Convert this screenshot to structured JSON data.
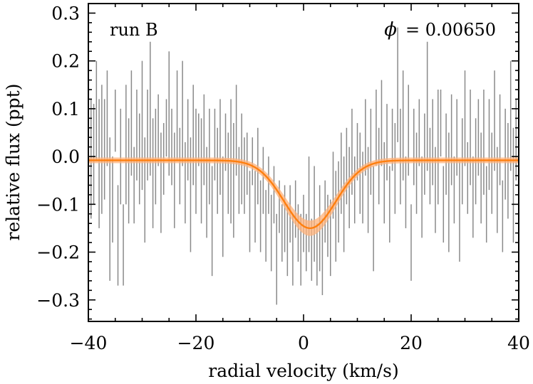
{
  "chart_data": {
    "type": "scatter",
    "xlabel": "radial velocity (km/s)",
    "ylabel": "relative flux (ppt)",
    "xlim": [
      -40,
      40
    ],
    "ylim": [
      -0.345,
      0.32
    ],
    "xticks": [
      -40,
      -20,
      0,
      20,
      40
    ],
    "xtick_labels": [
      "−40",
      "−20",
      "0",
      "20",
      "40"
    ],
    "yticks": [
      -0.3,
      -0.2,
      -0.1,
      0.0,
      0.1,
      0.2,
      0.3
    ],
    "ytick_labels": [
      "−0.3",
      "−0.2",
      "−0.1",
      "0.0",
      "0.1",
      "0.2",
      "0.3"
    ],
    "annotations": {
      "run_label": "run B",
      "phase_symbol": "ϕ",
      "phase_value": "= 0.00650"
    },
    "colors": {
      "errorbar": "#8a8a8a",
      "model_line": "#ff7f0e",
      "model_band": "#ffb27a"
    },
    "model": {
      "baseline": -0.008,
      "depth": 0.142,
      "center": 1.2,
      "sigma": 4.8,
      "band_halfwidth_wing": 0.006,
      "band_halfwidth_core": 0.016
    },
    "errorbars": [
      [
        -39.5,
        -0.13,
        0.12
      ],
      [
        -39.0,
        -0.1,
        0.11
      ],
      [
        -38.5,
        -0.01,
        0.2
      ],
      [
        -38.0,
        -0.15,
        0.12
      ],
      [
        -37.5,
        -0.12,
        0.15
      ],
      [
        -37.0,
        -0.09,
        0.12
      ],
      [
        -36.5,
        -0.02,
        0.18
      ],
      [
        -36.0,
        -0.26,
        0.04
      ],
      [
        -35.5,
        -0.18,
        0.0
      ],
      [
        -35.0,
        0.01,
        0.14
      ],
      [
        -34.5,
        -0.27,
        -0.06
      ],
      [
        -34.0,
        -0.1,
        0.1
      ],
      [
        -33.5,
        -0.27,
        -0.1
      ],
      [
        -33.0,
        -0.1,
        0.15
      ],
      [
        -32.5,
        -0.14,
        0.08
      ],
      [
        -32.0,
        -0.04,
        0.18
      ],
      [
        -31.5,
        -0.14,
        0.02
      ],
      [
        -31.0,
        -0.05,
        0.14
      ],
      [
        -30.5,
        -0.1,
        0.09
      ],
      [
        -30.0,
        -0.07,
        0.2
      ],
      [
        -29.5,
        -0.18,
        0.04
      ],
      [
        -29.0,
        -0.05,
        0.14
      ],
      [
        -28.5,
        -0.04,
        0.24
      ],
      [
        -28.0,
        -0.15,
        0.08
      ],
      [
        -27.5,
        -0.1,
        0.1
      ],
      [
        -27.0,
        -0.02,
        0.13
      ],
      [
        -26.5,
        -0.16,
        0.05
      ],
      [
        -26.0,
        -0.08,
        0.07
      ],
      [
        -25.5,
        0.0,
        0.12
      ],
      [
        -25.0,
        -0.04,
        0.22
      ],
      [
        -24.5,
        -0.06,
        0.1
      ],
      [
        -24.0,
        -0.15,
        0.05
      ],
      [
        -23.5,
        -0.01,
        0.18
      ],
      [
        -23.0,
        -0.1,
        0.06
      ],
      [
        -22.5,
        -0.02,
        0.2
      ],
      [
        -22.0,
        -0.14,
        0.03
      ],
      [
        -21.5,
        -0.05,
        0.12
      ],
      [
        -21.0,
        -0.2,
        0.04
      ],
      [
        -20.5,
        -0.06,
        0.15
      ],
      [
        -20.0,
        -0.12,
        0.1
      ],
      [
        -19.5,
        -0.02,
        0.09
      ],
      [
        -19.0,
        -0.14,
        0.08
      ],
      [
        -18.5,
        -0.06,
        0.13
      ],
      [
        -18.0,
        -0.17,
        0.02
      ],
      [
        -17.5,
        -0.1,
        0.1
      ],
      [
        -17.0,
        -0.25,
        -0.02
      ],
      [
        -16.5,
        -0.05,
        0.1
      ],
      [
        -16.0,
        -0.12,
        0.06
      ],
      [
        -15.5,
        -0.08,
        0.12
      ],
      [
        -15.0,
        -0.21,
        0.0
      ],
      [
        -14.5,
        -0.03,
        0.09
      ],
      [
        -14.0,
        -0.12,
        0.05
      ],
      [
        -13.5,
        -0.14,
        0.12
      ],
      [
        -13.0,
        -0.17,
        0.07
      ],
      [
        -12.5,
        -0.04,
        0.15
      ],
      [
        -12.0,
        -0.12,
        0.02
      ],
      [
        -11.5,
        -0.1,
        0.09
      ],
      [
        -11.0,
        -0.12,
        0.04
      ],
      [
        -10.5,
        -0.08,
        0.05
      ],
      [
        -10.0,
        -0.2,
        -0.03
      ],
      [
        -9.5,
        -0.06,
        0.04
      ],
      [
        -9.0,
        -0.18,
        -0.03
      ],
      [
        -8.5,
        -0.1,
        0.06
      ],
      [
        -8.0,
        -0.2,
        -0.05
      ],
      [
        -7.5,
        -0.12,
        0.02
      ],
      [
        -7.0,
        -0.22,
        -0.07
      ],
      [
        -6.5,
        -0.12,
        0.0
      ],
      [
        -6.0,
        -0.24,
        -0.08
      ],
      [
        -5.5,
        -0.14,
        -0.02
      ],
      [
        -5.0,
        -0.31,
        -0.12
      ],
      [
        -4.5,
        -0.16,
        -0.05
      ],
      [
        -4.0,
        -0.22,
        -0.1
      ],
      [
        -3.5,
        -0.2,
        -0.06
      ],
      [
        -3.0,
        -0.25,
        -0.1
      ],
      [
        -2.5,
        -0.18,
        -0.06
      ],
      [
        -2.0,
        -0.27,
        -0.12
      ],
      [
        -1.5,
        -0.17,
        -0.05
      ],
      [
        -1.0,
        -0.22,
        -0.1
      ],
      [
        -0.5,
        -0.27,
        -0.12
      ],
      [
        0.0,
        -0.2,
        -0.08
      ],
      [
        0.5,
        -0.24,
        -0.12
      ],
      [
        1.0,
        -0.2,
        0.0
      ],
      [
        1.5,
        -0.26,
        -0.13
      ],
      [
        2.0,
        -0.22,
        -0.02
      ],
      [
        2.5,
        -0.27,
        -0.14
      ],
      [
        3.0,
        -0.24,
        -0.06
      ],
      [
        3.5,
        -0.29,
        -0.13
      ],
      [
        4.0,
        -0.18,
        -0.05
      ],
      [
        4.5,
        -0.21,
        -0.08
      ],
      [
        5.0,
        -0.25,
        -0.09
      ],
      [
        5.5,
        -0.13,
        0.01
      ],
      [
        6.0,
        -0.22,
        -0.03
      ],
      [
        6.5,
        -0.18,
        -0.01
      ],
      [
        7.0,
        -0.12,
        0.05
      ],
      [
        7.5,
        -0.2,
        0.0
      ],
      [
        8.0,
        -0.1,
        0.06
      ],
      [
        8.5,
        -0.15,
        0.02
      ],
      [
        9.0,
        -0.08,
        0.1
      ],
      [
        9.5,
        -0.14,
        0.0
      ],
      [
        10.0,
        -0.05,
        0.07
      ],
      [
        10.5,
        -0.12,
        0.05
      ],
      [
        11.0,
        -0.14,
        0.01
      ],
      [
        11.5,
        -0.04,
        0.12
      ],
      [
        12.0,
        -0.16,
        0.02
      ],
      [
        12.5,
        -0.08,
        0.1
      ],
      [
        13.0,
        -0.24,
        -0.02
      ],
      [
        13.5,
        -0.02,
        0.14
      ],
      [
        14.0,
        -0.1,
        0.06
      ],
      [
        14.5,
        -0.02,
        0.16
      ],
      [
        15.0,
        -0.14,
        0.03
      ],
      [
        15.5,
        -0.05,
        0.11
      ],
      [
        16.0,
        -0.18,
        -0.02
      ],
      [
        16.5,
        -0.03,
        0.1
      ],
      [
        17.0,
        -0.12,
        0.07
      ],
      [
        17.5,
        0.03,
        0.27
      ],
      [
        18.0,
        -0.1,
        0.1
      ],
      [
        18.5,
        -0.05,
        0.18
      ],
      [
        19.0,
        -0.15,
        0.0
      ],
      [
        19.5,
        -0.04,
        0.15
      ],
      [
        20.0,
        -0.26,
        -0.1
      ],
      [
        20.5,
        -0.06,
        0.1
      ],
      [
        21.0,
        -0.12,
        0.05
      ],
      [
        21.5,
        -0.02,
        0.12
      ],
      [
        22.0,
        -0.17,
        0.0
      ],
      [
        22.5,
        -0.08,
        0.09
      ],
      [
        23.0,
        -0.03,
        0.24
      ],
      [
        23.5,
        -0.1,
        0.06
      ],
      [
        24.0,
        -0.06,
        0.12
      ],
      [
        24.5,
        -0.16,
        0.02
      ],
      [
        25.0,
        -0.1,
        0.14
      ],
      [
        25.5,
        0.0,
        0.14
      ],
      [
        26.0,
        -0.18,
        -0.02
      ],
      [
        26.5,
        -0.08,
        0.09
      ],
      [
        27.0,
        -0.2,
        0.05
      ],
      [
        27.5,
        -0.06,
        0.13
      ],
      [
        28.0,
        -0.14,
        0.0
      ],
      [
        28.5,
        -0.04,
        0.12
      ],
      [
        29.0,
        -0.22,
        -0.01
      ],
      [
        29.5,
        -0.1,
        0.08
      ],
      [
        30.0,
        -0.02,
        0.18
      ],
      [
        30.5,
        -0.12,
        0.03
      ],
      [
        31.0,
        -0.06,
        0.14
      ],
      [
        31.5,
        -0.17,
        0.0
      ],
      [
        32.0,
        -0.1,
        0.08
      ],
      [
        32.5,
        -0.04,
        0.12
      ],
      [
        33.0,
        -0.14,
        0.05
      ],
      [
        33.5,
        -0.08,
        0.14
      ],
      [
        34.0,
        -0.18,
        -0.02
      ],
      [
        34.5,
        -0.07,
        0.12
      ],
      [
        35.0,
        -0.12,
        0.05
      ],
      [
        35.5,
        -0.03,
        0.18
      ],
      [
        36.0,
        -0.16,
        0.02
      ],
      [
        36.5,
        -0.06,
        0.13
      ],
      [
        37.0,
        -0.2,
        -0.05
      ],
      [
        37.5,
        -0.09,
        0.1
      ],
      [
        38.0,
        -0.13,
        0.07
      ],
      [
        38.5,
        -0.03,
        0.2
      ],
      [
        39.0,
        -0.18,
        0.06
      ],
      [
        39.5,
        -0.05,
        0.12
      ]
    ]
  }
}
